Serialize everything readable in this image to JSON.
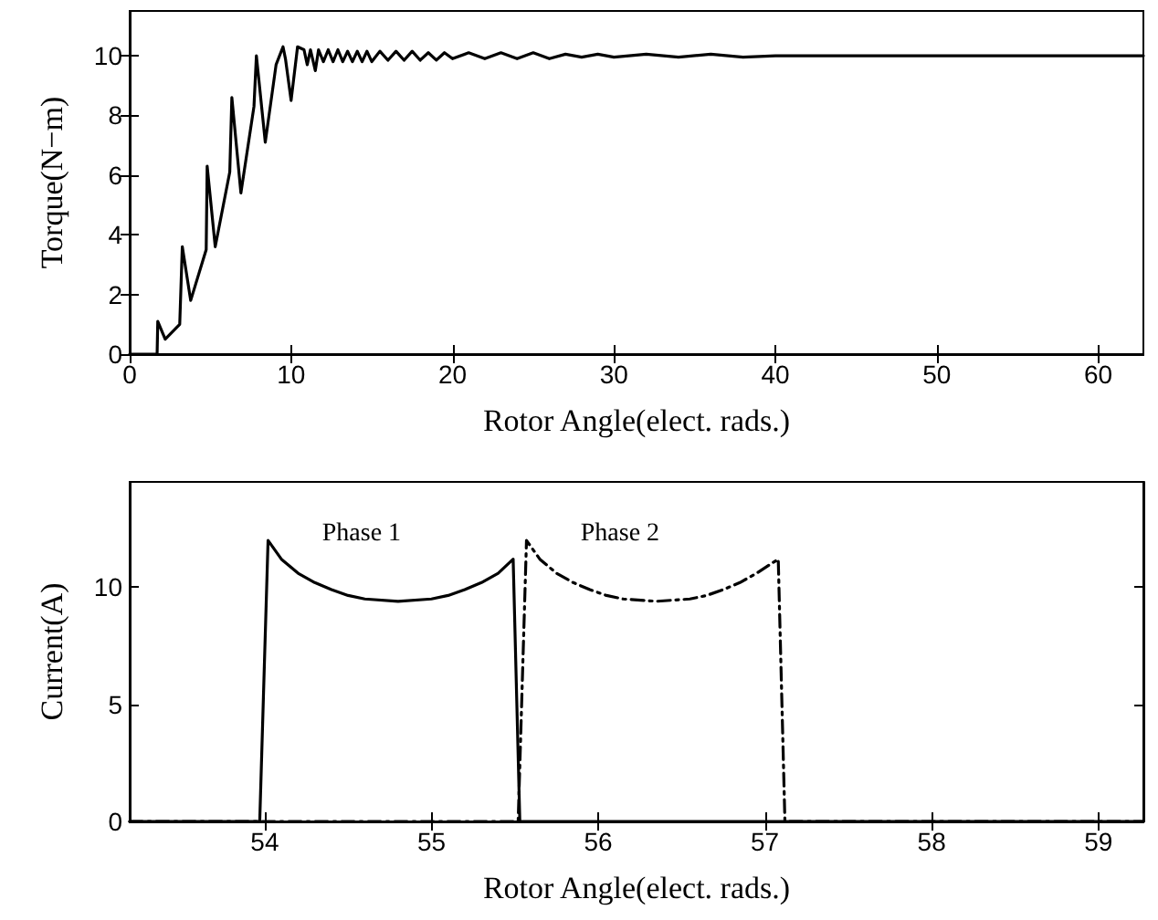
{
  "chart_data": [
    {
      "type": "line",
      "xlabel": "Rotor Angle(elect. rads.)",
      "ylabel": "Torque(N−m)",
      "xlim": [
        0,
        62.8
      ],
      "ylim": [
        0,
        11.5
      ],
      "xticks": [
        0,
        10,
        20,
        30,
        40,
        50,
        60
      ],
      "yticks": [
        0,
        2,
        4,
        6,
        8,
        10
      ],
      "grid": false,
      "marker": "none",
      "series": [
        {
          "color": "#000000",
          "line_style": "solid",
          "x": [
            0,
            1.7,
            1.74,
            2.2,
            3.1,
            3.26,
            3.78,
            4.74,
            4.8,
            5.3,
            6.2,
            6.33,
            6.89,
            7.7,
            7.85,
            8.4,
            9.07,
            9.5,
            9.65,
            10.0,
            10.4,
            10.8,
            11.0,
            11.2,
            11.5,
            11.7,
            12.0,
            12.3,
            12.6,
            12.9,
            13.2,
            13.5,
            13.8,
            14.1,
            14.4,
            14.7,
            15.0,
            15.5,
            16.0,
            16.5,
            17.0,
            17.5,
            18.0,
            18.5,
            19.0,
            19.5,
            20.0,
            21,
            22,
            23,
            24,
            25,
            26,
            27,
            28,
            29,
            30,
            32,
            34,
            36,
            38,
            40,
            45,
            50,
            62.8
          ],
          "values": [
            0,
            0,
            1.1,
            0.5,
            1.0,
            3.6,
            1.8,
            3.5,
            6.3,
            3.6,
            6.1,
            8.6,
            5.4,
            8.3,
            10.0,
            7.1,
            9.7,
            10.3,
            9.9,
            8.5,
            10.3,
            10.2,
            9.7,
            10.2,
            9.5,
            10.2,
            9.8,
            10.2,
            9.8,
            10.2,
            9.8,
            10.15,
            9.8,
            10.15,
            9.8,
            10.15,
            9.8,
            10.15,
            9.85,
            10.15,
            9.85,
            10.15,
            9.85,
            10.1,
            9.85,
            10.1,
            9.9,
            10.1,
            9.9,
            10.1,
            9.9,
            10.1,
            9.9,
            10.05,
            9.95,
            10.05,
            9.95,
            10.05,
            9.95,
            10.05,
            9.95,
            10,
            10,
            10,
            10
          ]
        }
      ]
    },
    {
      "type": "line",
      "xlabel": "Rotor Angle(elect. rads.)",
      "ylabel": "Current(A)",
      "xlim": [
        53.19,
        59.27
      ],
      "ylim": [
        0,
        14.5
      ],
      "xticks": [
        54,
        55,
        56,
        57,
        58,
        59
      ],
      "yticks": [
        0,
        5,
        10
      ],
      "grid": false,
      "marker": "none",
      "series": [
        {
          "name": "Phase 1",
          "color": "#000000",
          "line_style": "solid",
          "x": [
            53.19,
            53.97,
            54.02,
            54.1,
            54.2,
            54.3,
            54.4,
            54.5,
            54.6,
            54.8,
            55.0,
            55.1,
            55.2,
            55.3,
            55.4,
            55.49,
            55.53,
            59.27
          ],
          "values": [
            0,
            0,
            12,
            11.2,
            10.6,
            10.2,
            9.9,
            9.65,
            9.5,
            9.4,
            9.5,
            9.65,
            9.9,
            10.2,
            10.6,
            11.2,
            0,
            0
          ]
        },
        {
          "name": "Phase 2",
          "color": "#000000",
          "line_style": "dashed",
          "x": [
            53.19,
            55.52,
            55.57,
            55.65,
            55.75,
            55.85,
            55.95,
            56.05,
            56.15,
            56.35,
            56.55,
            56.65,
            56.75,
            56.85,
            56.95,
            57.08,
            57.12,
            59.27
          ],
          "values": [
            0,
            0,
            12,
            11.2,
            10.6,
            10.2,
            9.9,
            9.65,
            9.5,
            9.4,
            9.5,
            9.65,
            9.9,
            10.2,
            10.6,
            11.2,
            0,
            0
          ]
        }
      ]
    }
  ]
}
